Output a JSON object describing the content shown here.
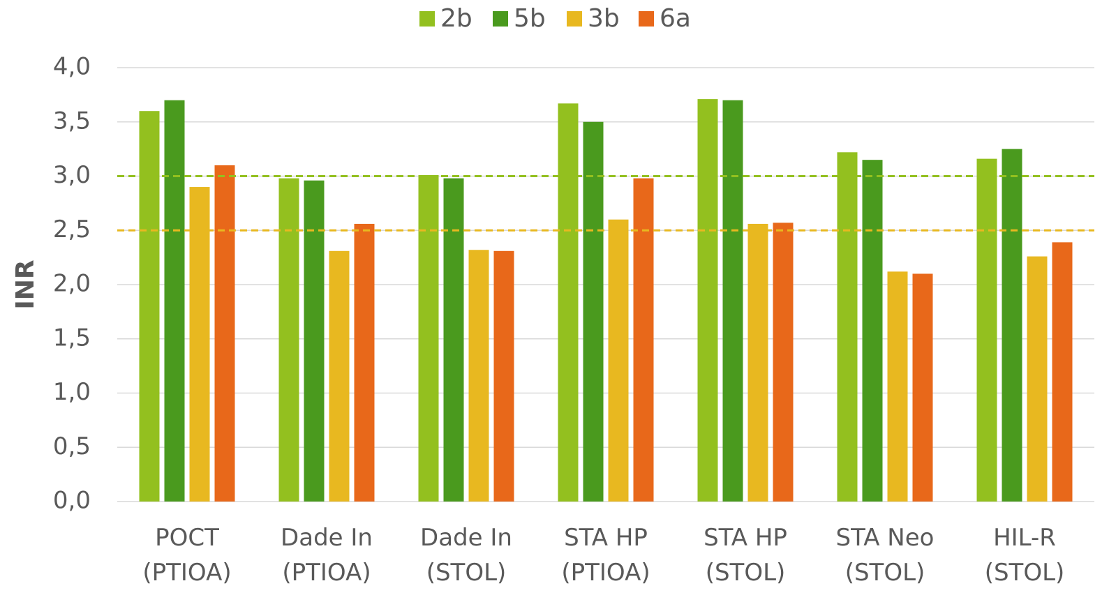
{
  "chart_data": {
    "type": "bar",
    "categories": [
      "POCT\n(PTIOA)",
      "Dade In\n(PTIOA)",
      "Dade In\n(STOL)",
      "STA HP\n(PTIOA)",
      "STA HP\n(STOL)",
      "STA Neo\n(STOL)",
      "HIL-R\n(STOL)"
    ],
    "series": [
      {
        "name": "2b",
        "color": "#93c01f",
        "values": [
          3.6,
          2.98,
          3.01,
          3.67,
          3.71,
          3.22,
          3.16
        ]
      },
      {
        "name": "5b",
        "color": "#4a9a1e",
        "values": [
          3.7,
          2.96,
          2.98,
          3.5,
          3.7,
          3.15,
          3.25
        ]
      },
      {
        "name": "3b",
        "color": "#e8b820",
        "values": [
          2.9,
          2.31,
          2.32,
          2.6,
          2.56,
          2.12,
          2.26
        ]
      },
      {
        "name": "6a",
        "color": "#e8681a",
        "values": [
          3.1,
          2.56,
          2.31,
          2.98,
          2.57,
          2.1,
          2.39
        ]
      }
    ],
    "y_label": "INR",
    "ylim": [
      0,
      4
    ],
    "yticks": [
      {
        "value": 0,
        "label": "0,0"
      },
      {
        "value": 0.5,
        "label": "0,5"
      },
      {
        "value": 1,
        "label": "1,0"
      },
      {
        "value": 1.5,
        "label": "1,5"
      },
      {
        "value": 2,
        "label": "2,0"
      },
      {
        "value": 2.5,
        "label": "2,5"
      },
      {
        "value": 3,
        "label": "3,0"
      },
      {
        "value": 3.5,
        "label": "3,5"
      },
      {
        "value": 4,
        "label": "4,0"
      }
    ],
    "reference_lines": [
      {
        "value": 3,
        "color": "#93c01f"
      },
      {
        "value": 2.5,
        "color": "#e8b820"
      }
    ],
    "grid": true,
    "legend": "top"
  }
}
